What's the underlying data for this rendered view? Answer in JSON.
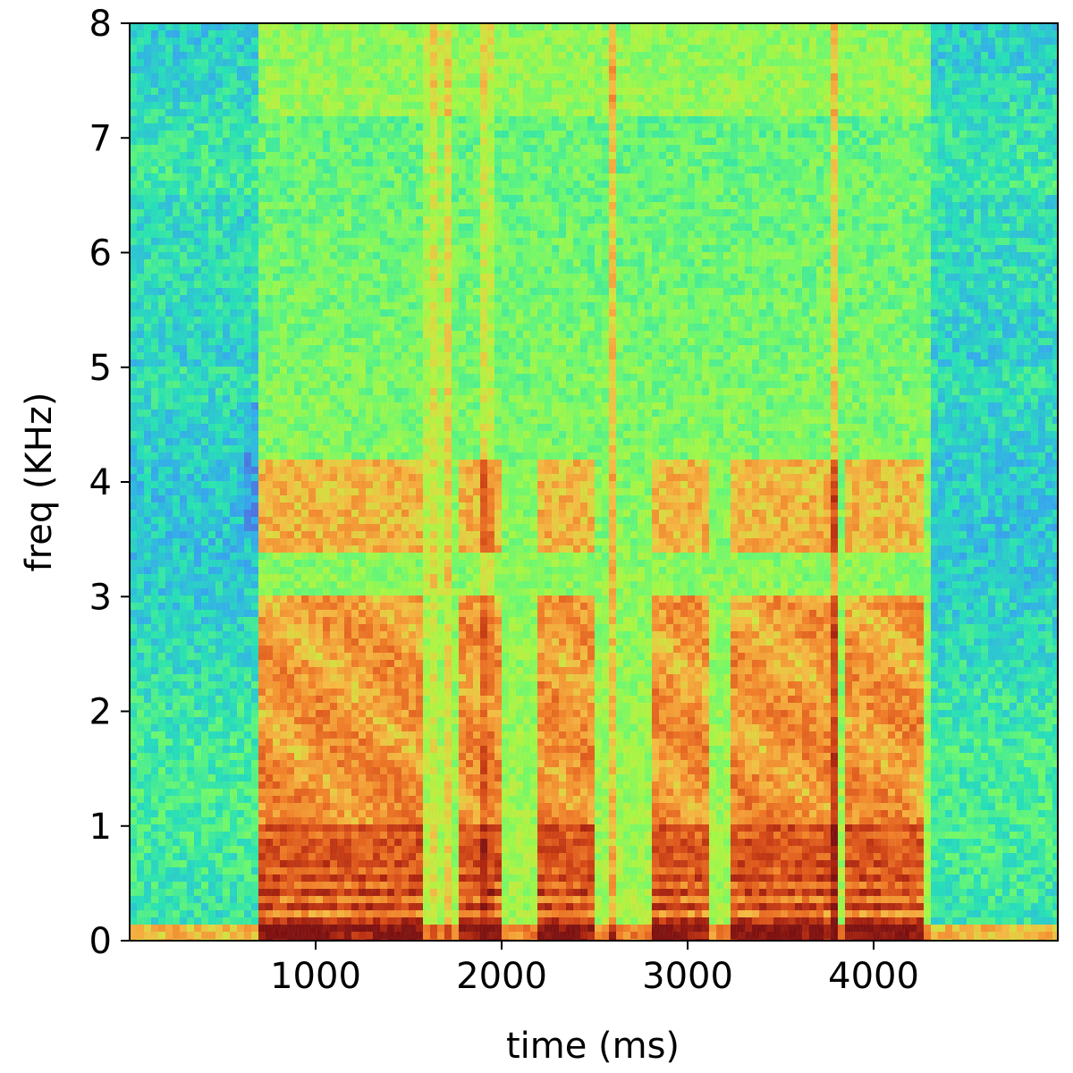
{
  "chart_data": {
    "type": "heatmap",
    "title": "",
    "xlabel": "time (ms)",
    "ylabel": "freq (KHz)",
    "xlim": [
      0,
      4990
    ],
    "ylim": [
      0,
      8
    ],
    "x_ticks": [
      1000,
      2000,
      3000,
      4000
    ],
    "x_tick_labels": [
      "1000",
      "2000",
      "3000",
      "4000"
    ],
    "y_ticks": [
      0,
      1,
      2,
      3,
      4,
      5,
      6,
      7,
      8
    ],
    "y_tick_labels": [
      "0",
      "1",
      "2",
      "3",
      "4",
      "5",
      "6",
      "7",
      "8"
    ],
    "colormap": "turbo",
    "grid": false,
    "speech_onset_ms": 680,
    "speech_offset_ms": 4300,
    "voiced_segments_ms": [
      [
        680,
        1580
      ],
      [
        1780,
        2000
      ],
      [
        2180,
        2500
      ],
      [
        2820,
        3130
      ],
      [
        3230,
        3800
      ],
      [
        3850,
        4280
      ]
    ],
    "fricative_bursts_ms": [
      1620,
      1700,
      1920,
      2600,
      3780
    ],
    "formant_band_khz": [
      3.4,
      4.2
    ],
    "harmonic_band_khz": [
      0.1,
      1.0
    ]
  }
}
